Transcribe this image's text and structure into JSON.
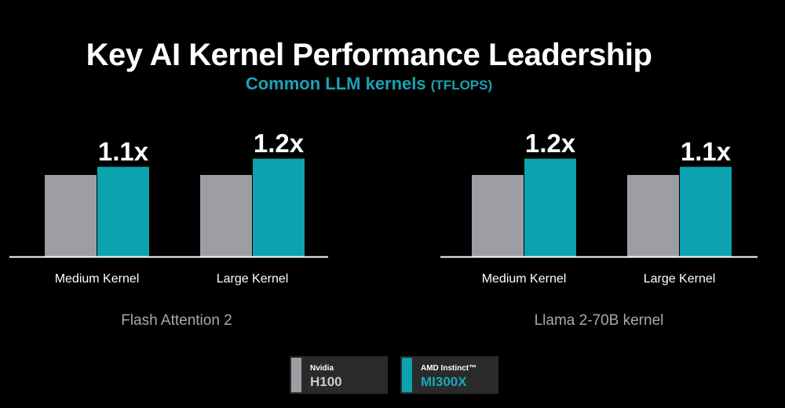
{
  "title": "Key AI Kernel Performance Leadership",
  "subtitle": "Common LLM kernels",
  "subtitle_unit": "(TFLOPS)",
  "colors": {
    "background": "#000000",
    "nvidia": "#9c9ea3",
    "amd": "#0aa3ae",
    "text_muted": "#a7a9ac"
  },
  "legend": [
    {
      "brand": "Nvidia",
      "model": "H100",
      "color": "#9c9ea3",
      "model_color": "#c9cacc"
    },
    {
      "brand": "AMD Instinct™",
      "model": "MI300X",
      "color": "#0aa3ae",
      "model_color": "#15aab8"
    }
  ],
  "chart_data": [
    {
      "type": "bar",
      "title": "Flash Attention 2",
      "categories": [
        "Medium Kernel",
        "Large Kernel"
      ],
      "series": [
        {
          "name": "Nvidia H100",
          "values": [
            1.0,
            1.0
          ]
        },
        {
          "name": "AMD Instinct™ MI300X",
          "values": [
            1.1,
            1.2
          ]
        }
      ],
      "data_labels": [
        "1.1x",
        "1.2x"
      ],
      "ylim": [
        0,
        1.3
      ]
    },
    {
      "type": "bar",
      "title": "Llama 2-70B kernel",
      "categories": [
        "Medium Kernel",
        "Large Kernel"
      ],
      "series": [
        {
          "name": "Nvidia H100",
          "values": [
            1.0,
            1.0
          ]
        },
        {
          "name": "AMD Instinct™ MI300X",
          "values": [
            1.2,
            1.1
          ]
        }
      ],
      "data_labels": [
        "1.2x",
        "1.1x"
      ],
      "ylim": [
        0,
        1.3
      ]
    }
  ]
}
